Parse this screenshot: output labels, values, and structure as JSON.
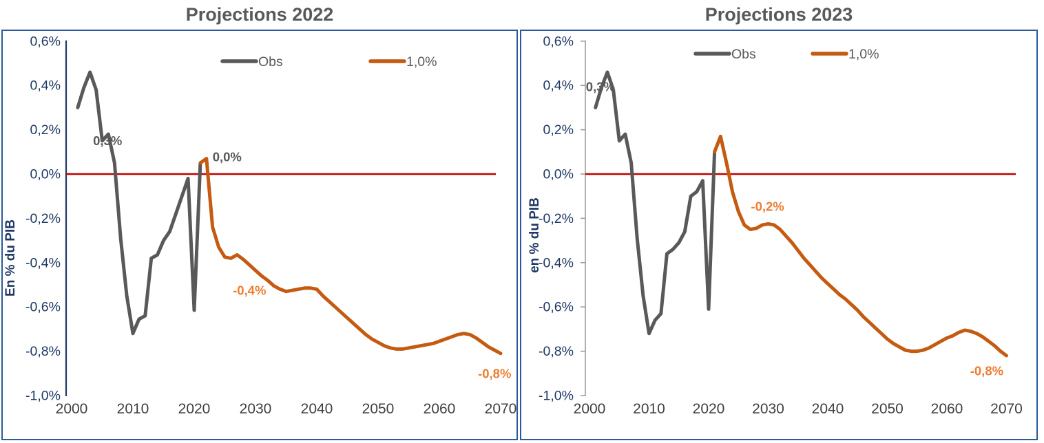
{
  "page": {
    "background": "#ffffff"
  },
  "colors": {
    "obs_line": "#595959",
    "projection_line": "#C55A11",
    "zero_line": "#C00000",
    "axis_navy": "#1F3864",
    "axis_gray": "#9c9c9c",
    "x_label": "#3f3f3f",
    "title": "#595959",
    "annotation_gray": "#595959",
    "annotation_orange": "#ED7D31",
    "panel_border": "#2A5A9B",
    "legend_text": "#595959"
  },
  "chart_data": [
    {
      "type": "line",
      "title": "Projections 2022",
      "ylabel": "En % du PIB",
      "xlabel": "",
      "xlim": [
        2000,
        2070
      ],
      "ylim": [
        -1.0,
        0.6
      ],
      "grid": false,
      "zero_line": 0.0,
      "legend_position": "top-center-inside",
      "x_ticks": [
        "2000",
        "2010",
        "2020",
        "2030",
        "2040",
        "2050",
        "2060",
        "2070"
      ],
      "y_ticks": [
        {
          "value": 0.6,
          "label": "0,6%"
        },
        {
          "value": 0.4,
          "label": "0,4%"
        },
        {
          "value": 0.2,
          "label": "0,2%"
        },
        {
          "value": 0.0,
          "label": "0,0%"
        },
        {
          "value": -0.2,
          "label": "-0,2%"
        },
        {
          "value": -0.4,
          "label": "-0,4%"
        },
        {
          "value": -0.6,
          "label": "-0,6%"
        },
        {
          "value": -0.8,
          "label": "-0,8%"
        },
        {
          "value": -1.0,
          "label": "-1,0%"
        }
      ],
      "legend": [
        {
          "name": "Obs",
          "color_key": "obs_line"
        },
        {
          "name": "1,0%",
          "color_key": "projection_line"
        }
      ],
      "annotations": [
        {
          "text": "0,3%",
          "year": 2003.5,
          "value": 0.15,
          "color_key": "annotation_gray"
        },
        {
          "text": "0,0%",
          "year": 2023.0,
          "value": 0.078,
          "color_key": "annotation_gray"
        },
        {
          "text": "-0,4%",
          "year": 2026.3,
          "value": -0.525,
          "color_key": "annotation_orange"
        },
        {
          "text": "-0,8%",
          "year": 2066.3,
          "value": -0.9,
          "color_key": "annotation_orange"
        }
      ],
      "series": [
        {
          "name": "Obs",
          "color_key": "obs_line",
          "points": [
            [
              2001,
              0.3
            ],
            [
              2002,
              0.39
            ],
            [
              2003,
              0.46
            ],
            [
              2004,
              0.38
            ],
            [
              2005,
              0.15
            ],
            [
              2006,
              0.18
            ],
            [
              2007,
              0.05
            ],
            [
              2008,
              -0.29
            ],
            [
              2009,
              -0.55
            ],
            [
              2010,
              -0.72
            ],
            [
              2011,
              -0.655
            ],
            [
              2012,
              -0.64
            ],
            [
              2013,
              -0.38
            ],
            [
              2014,
              -0.365
            ],
            [
              2015,
              -0.3
            ],
            [
              2016,
              -0.26
            ],
            [
              2017,
              -0.18
            ],
            [
              2018,
              -0.1
            ],
            [
              2019,
              -0.02
            ],
            [
              2020,
              -0.615
            ],
            [
              2021,
              0.05
            ]
          ]
        },
        {
          "name": "1,0%",
          "color_key": "projection_line",
          "points": [
            [
              2021,
              0.05
            ],
            [
              2022,
              0.07
            ],
            [
              2023,
              -0.24
            ],
            [
              2024,
              -0.33
            ],
            [
              2025,
              -0.375
            ],
            [
              2026,
              -0.38
            ],
            [
              2027,
              -0.365
            ],
            [
              2028,
              -0.385
            ],
            [
              2029,
              -0.41
            ],
            [
              2030,
              -0.435
            ],
            [
              2031,
              -0.46
            ],
            [
              2032,
              -0.48
            ],
            [
              2033,
              -0.505
            ],
            [
              2034,
              -0.52
            ],
            [
              2035,
              -0.53
            ],
            [
              2036,
              -0.525
            ],
            [
              2037,
              -0.52
            ],
            [
              2038,
              -0.515
            ],
            [
              2039,
              -0.515
            ],
            [
              2040,
              -0.52
            ],
            [
              2041,
              -0.55
            ],
            [
              2042,
              -0.575
            ],
            [
              2043,
              -0.6
            ],
            [
              2044,
              -0.625
            ],
            [
              2045,
              -0.65
            ],
            [
              2046,
              -0.675
            ],
            [
              2047,
              -0.7
            ],
            [
              2048,
              -0.725
            ],
            [
              2049,
              -0.745
            ],
            [
              2050,
              -0.76
            ],
            [
              2051,
              -0.775
            ],
            [
              2052,
              -0.785
            ],
            [
              2053,
              -0.79
            ],
            [
              2054,
              -0.79
            ],
            [
              2055,
              -0.785
            ],
            [
              2056,
              -0.78
            ],
            [
              2057,
              -0.775
            ],
            [
              2058,
              -0.77
            ],
            [
              2059,
              -0.765
            ],
            [
              2060,
              -0.755
            ],
            [
              2061,
              -0.745
            ],
            [
              2062,
              -0.735
            ],
            [
              2063,
              -0.725
            ],
            [
              2064,
              -0.72
            ],
            [
              2065,
              -0.725
            ],
            [
              2066,
              -0.74
            ],
            [
              2067,
              -0.76
            ],
            [
              2068,
              -0.78
            ],
            [
              2069,
              -0.795
            ],
            [
              2070,
              -0.81
            ]
          ]
        }
      ]
    },
    {
      "type": "line",
      "title": "Projections 2023",
      "ylabel": "en % du PIB",
      "xlabel": "",
      "xlim": [
        2000,
        2070
      ],
      "ylim": [
        -1.0,
        0.6
      ],
      "grid": false,
      "zero_line": 0.0,
      "legend_position": "top-center-inside",
      "x_ticks": [
        "2000",
        "2010",
        "2020",
        "2030",
        "2040",
        "2050",
        "2060",
        "2070"
      ],
      "y_ticks": [
        {
          "value": 0.6,
          "label": "0,6%"
        },
        {
          "value": 0.4,
          "label": "0,4%"
        },
        {
          "value": 0.2,
          "label": "0,2%"
        },
        {
          "value": 0.0,
          "label": "0,0%"
        },
        {
          "value": -0.2,
          "label": "-0,2%"
        },
        {
          "value": -0.4,
          "label": "-0,4%"
        },
        {
          "value": -0.6,
          "label": "-0,6%"
        },
        {
          "value": -0.8,
          "label": "-0,8%"
        },
        {
          "value": -1.0,
          "label": "-1,0%"
        }
      ],
      "legend": [
        {
          "name": "Obs",
          "color_key": "obs_line"
        },
        {
          "name": "1,0%",
          "color_key": "projection_line"
        }
      ],
      "annotations": [
        {
          "text": "0,3%",
          "year": 1999.4,
          "value": 0.394,
          "color_key": "annotation_gray"
        },
        {
          "text": "-0,2%",
          "year": 2027.1,
          "value": -0.146,
          "color_key": "annotation_orange"
        },
        {
          "text": "-0,8%",
          "year": 2063.9,
          "value": -0.888,
          "color_key": "annotation_orange"
        }
      ],
      "series": [
        {
          "name": "Obs",
          "color_key": "obs_line",
          "points": [
            [
              2001,
              0.3
            ],
            [
              2002,
              0.39
            ],
            [
              2003,
              0.46
            ],
            [
              2004,
              0.38
            ],
            [
              2005,
              0.15
            ],
            [
              2006,
              0.18
            ],
            [
              2007,
              0.05
            ],
            [
              2008,
              -0.29
            ],
            [
              2009,
              -0.55
            ],
            [
              2010,
              -0.72
            ],
            [
              2011,
              -0.66
            ],
            [
              2012,
              -0.63
            ],
            [
              2013,
              -0.36
            ],
            [
              2014,
              -0.34
            ],
            [
              2015,
              -0.31
            ],
            [
              2016,
              -0.26
            ],
            [
              2017,
              -0.1
            ],
            [
              2018,
              -0.08
            ],
            [
              2019,
              -0.03
            ],
            [
              2020,
              -0.61
            ],
            [
              2021,
              0.1
            ]
          ]
        },
        {
          "name": "1,0%",
          "color_key": "projection_line",
          "points": [
            [
              2021,
              0.1
            ],
            [
              2022,
              0.17
            ],
            [
              2023,
              0.05
            ],
            [
              2024,
              -0.08
            ],
            [
              2025,
              -0.17
            ],
            [
              2026,
              -0.23
            ],
            [
              2027,
              -0.25
            ],
            [
              2028,
              -0.245
            ],
            [
              2029,
              -0.23
            ],
            [
              2030,
              -0.225
            ],
            [
              2031,
              -0.23
            ],
            [
              2032,
              -0.25
            ],
            [
              2033,
              -0.28
            ],
            [
              2034,
              -0.31
            ],
            [
              2035,
              -0.345
            ],
            [
              2036,
              -0.38
            ],
            [
              2037,
              -0.41
            ],
            [
              2038,
              -0.44
            ],
            [
              2039,
              -0.47
            ],
            [
              2040,
              -0.495
            ],
            [
              2041,
              -0.52
            ],
            [
              2042,
              -0.545
            ],
            [
              2043,
              -0.565
            ],
            [
              2044,
              -0.59
            ],
            [
              2045,
              -0.615
            ],
            [
              2046,
              -0.645
            ],
            [
              2047,
              -0.67
            ],
            [
              2048,
              -0.695
            ],
            [
              2049,
              -0.72
            ],
            [
              2050,
              -0.745
            ],
            [
              2051,
              -0.765
            ],
            [
              2052,
              -0.78
            ],
            [
              2053,
              -0.795
            ],
            [
              2054,
              -0.8
            ],
            [
              2055,
              -0.8
            ],
            [
              2056,
              -0.795
            ],
            [
              2057,
              -0.785
            ],
            [
              2058,
              -0.77
            ],
            [
              2059,
              -0.755
            ],
            [
              2060,
              -0.74
            ],
            [
              2061,
              -0.73
            ],
            [
              2062,
              -0.715
            ],
            [
              2063,
              -0.705
            ],
            [
              2064,
              -0.71
            ],
            [
              2065,
              -0.72
            ],
            [
              2066,
              -0.735
            ],
            [
              2067,
              -0.755
            ],
            [
              2068,
              -0.775
            ],
            [
              2069,
              -0.8
            ],
            [
              2070,
              -0.82
            ]
          ]
        }
      ]
    }
  ]
}
